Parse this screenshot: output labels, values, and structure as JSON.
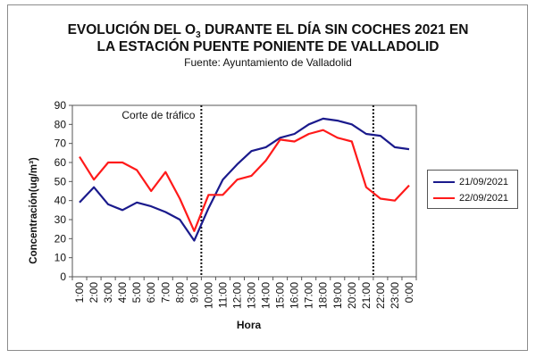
{
  "chart_data": {
    "type": "line",
    "title_line1": "EVOLUCIÓN DEL O",
    "title_sub": "3",
    "title_line1_rest": " DURANTE EL DÍA SIN COCHES 2021 EN",
    "title_line2": "LA ESTACIÓN PUENTE PONIENTE DE VALLADOLID",
    "subtitle": "Fuente: Ayuntamiento de Valladolid",
    "xlabel": "Hora",
    "ylabel": "Concentración(ug/m³)",
    "ylim": [
      0,
      90
    ],
    "yticks": [
      0,
      10,
      20,
      30,
      40,
      50,
      60,
      70,
      80,
      90
    ],
    "categories": [
      "1:00",
      "2:00",
      "3:00",
      "4:00",
      "5:00",
      "6:00",
      "7:00",
      "8:00",
      "9:00",
      "10:00",
      "11:00",
      "12:00",
      "13:00",
      "14:00",
      "15:00",
      "16:00",
      "17:00",
      "18:00",
      "19:00",
      "20:00",
      "21:00",
      "22:00",
      "23:00",
      "0:00"
    ],
    "series": [
      {
        "name": "21/09/2021",
        "color": "#1a1a8c",
        "values": [
          39,
          47,
          38,
          35,
          39,
          37,
          34,
          30,
          19,
          36,
          51,
          59,
          66,
          68,
          73,
          75,
          80,
          83,
          82,
          80,
          75,
          74,
          68,
          67
        ]
      },
      {
        "name": "22/09/2021",
        "color": "#ff1a1a",
        "values": [
          63,
          51,
          60,
          60,
          56,
          45,
          55,
          41,
          24,
          43,
          43,
          51,
          53,
          61,
          72,
          71,
          75,
          77,
          73,
          71,
          47,
          41,
          40,
          48
        ]
      }
    ],
    "annotation": "Corte de tráfico",
    "vlines_after_category": [
      "9:00",
      "21:00"
    ],
    "grid": false,
    "legend_position": "right"
  }
}
